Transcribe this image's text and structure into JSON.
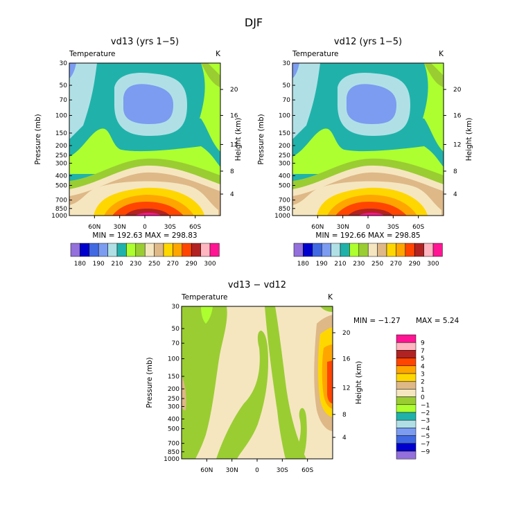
{
  "title": "DJF",
  "colors": {
    "c180": "#9370db",
    "c185": "#0000cd",
    "c190": "#4169e1",
    "c200": "#7b9cf0",
    "c210": "#b0e0e6",
    "c220": "#20b2aa",
    "c230": "#adff2f",
    "c240": "#9acd32",
    "c250": "#f5e6c0",
    "c255": "#deb887",
    "c260": "#ffd700",
    "c270": "#ffa500",
    "c280": "#ff4500",
    "c290": "#b22222",
    "c295": "#ffb6c1",
    "c300": "#ff1493"
  },
  "chart_data": [
    {
      "type": "contour",
      "title": "vd13 (yrs 1−5)",
      "variable": "Temperature",
      "units": "K",
      "ylabel": "Pressure (mb)",
      "y2label": "Height (km)",
      "stats": "MIN = 192.63   MAX = 298.83",
      "x_ticks": [
        "60N",
        "30N",
        "0",
        "30S",
        "60S"
      ],
      "y_ticks": [
        "30",
        "50",
        "70",
        "100",
        "150",
        "200",
        "250",
        "300",
        "400",
        "500",
        "700",
        "850",
        "1000"
      ],
      "y2_ticks": [
        "20",
        "16",
        "12",
        "8",
        "4"
      ],
      "colorbar_labels": [
        "180",
        "190",
        "210",
        "230",
        "250",
        "270",
        "290",
        "300"
      ]
    },
    {
      "type": "contour",
      "title": "vd12 (yrs 1−5)",
      "variable": "Temperature",
      "units": "K",
      "ylabel": "Pressure (mb)",
      "y2label": "Height (km)",
      "stats": "MIN = 192.66   MAX = 298.85",
      "x_ticks": [
        "60N",
        "30N",
        "0",
        "30S",
        "60S"
      ],
      "y_ticks": [
        "30",
        "50",
        "70",
        "100",
        "150",
        "200",
        "250",
        "300",
        "400",
        "500",
        "700",
        "850",
        "1000"
      ],
      "y2_ticks": [
        "20",
        "16",
        "12",
        "8",
        "4"
      ],
      "colorbar_labels": [
        "180",
        "190",
        "210",
        "230",
        "250",
        "270",
        "290",
        "300"
      ]
    },
    {
      "type": "contour",
      "title": "vd13 − vd12",
      "variable": "Temperature",
      "units": "K",
      "ylabel": "Pressure (mb)",
      "y2label": "Height (km)",
      "stats_min": "MIN =  −1.27",
      "stats_max": "MAX =   5.24",
      "x_ticks": [
        "60N",
        "30N",
        "0",
        "30S",
        "60S"
      ],
      "y_ticks": [
        "30",
        "50",
        "70",
        "100",
        "150",
        "200",
        "250",
        "300",
        "400",
        "500",
        "700",
        "850",
        "1000"
      ],
      "y2_ticks": [
        "20",
        "16",
        "12",
        "8",
        "4"
      ],
      "colorbar_labels": [
        "9",
        "7",
        "5",
        "4",
        "3",
        "2",
        "1",
        "0",
        "−1",
        "−2",
        "−3",
        "−4",
        "−5",
        "−7",
        "−9"
      ],
      "colorbar_colors": [
        "#ff1493",
        "#ffb6c1",
        "#b22222",
        "#ff4500",
        "#ffa500",
        "#ffd700",
        "#deb887",
        "#f5e6c0",
        "#9acd32",
        "#adff2f",
        "#20b2aa",
        "#b0e0e6",
        "#7b9cf0",
        "#4169e1",
        "#0000cd",
        "#9370db"
      ]
    }
  ]
}
